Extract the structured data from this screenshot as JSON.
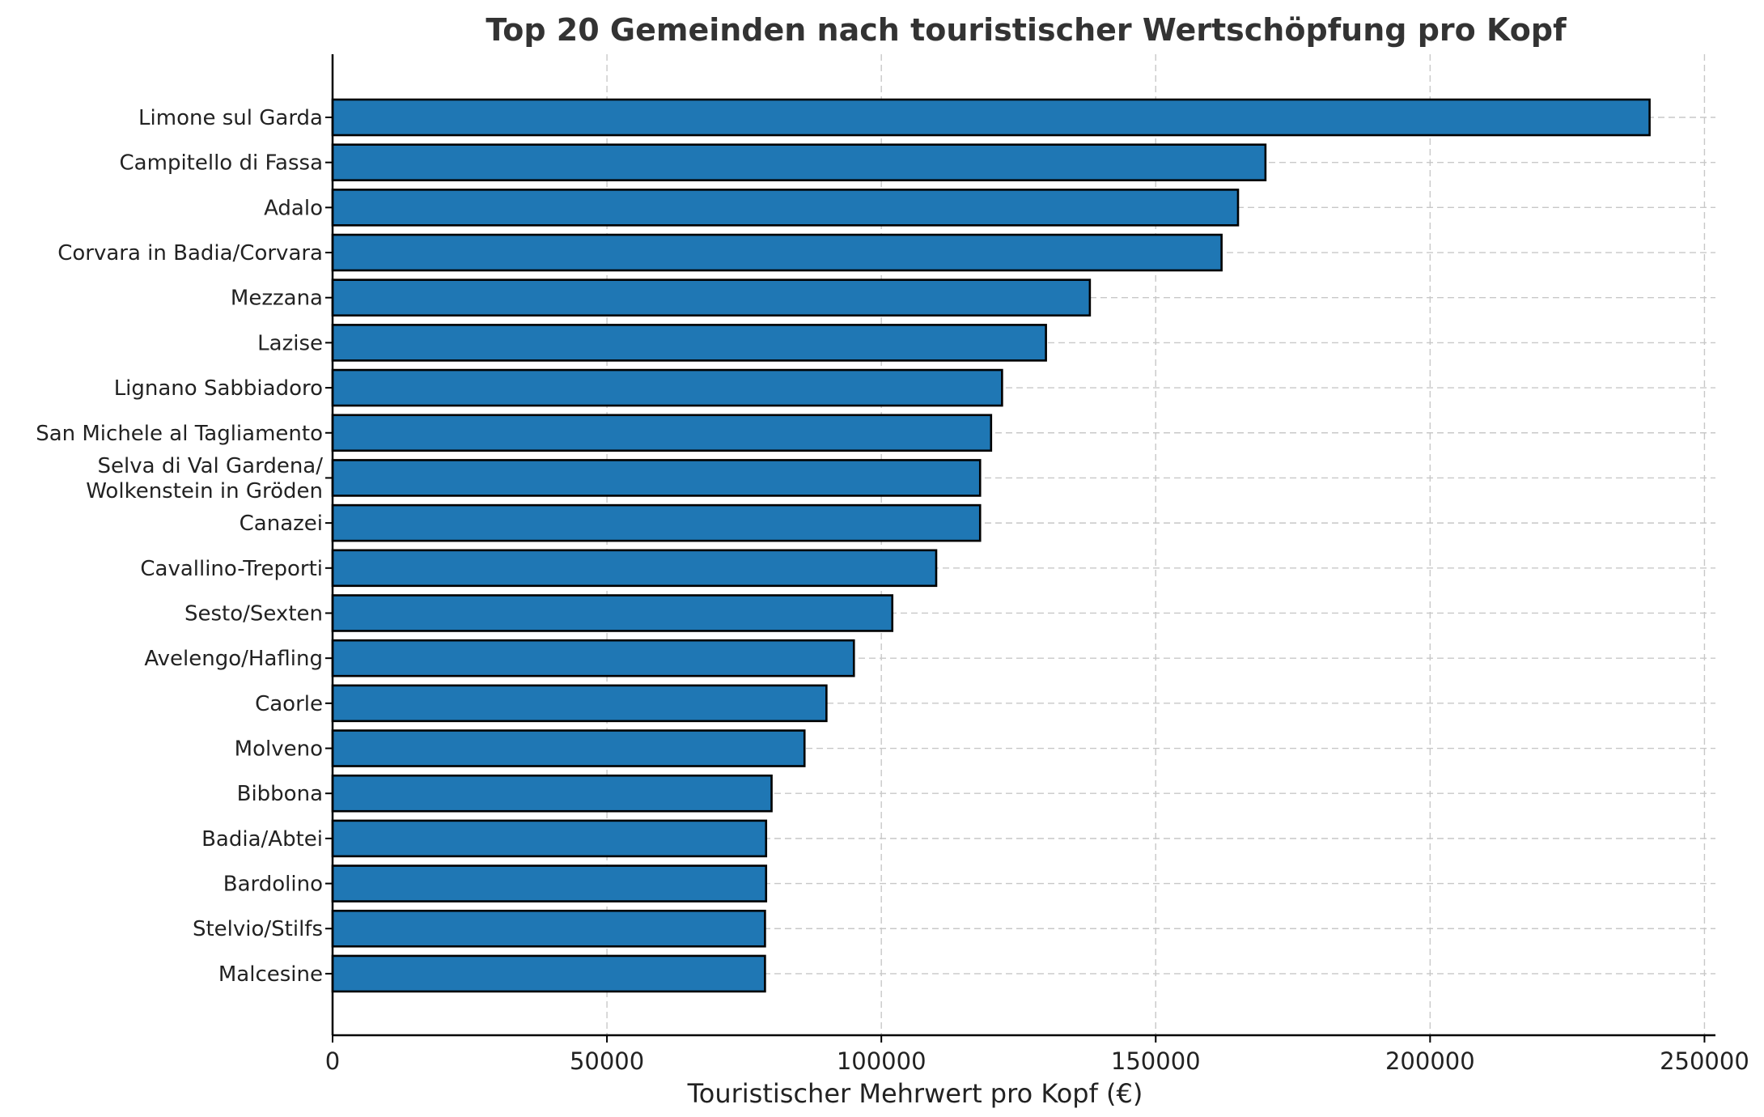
{
  "chart_data": {
    "type": "bar",
    "orientation": "horizontal",
    "title": "Top 20 Gemeinden nach touristischer Wertschöpfung pro Kopf",
    "xlabel": "Touristischer Mehrwert pro Kopf (€)",
    "ylabel": "",
    "xlim": [
      0,
      252000
    ],
    "xticks": [
      0,
      50000,
      100000,
      150000,
      200000,
      250000
    ],
    "xtick_labels": [
      "0",
      "50000",
      "100000",
      "150000",
      "200000",
      "250000"
    ],
    "grid": true,
    "bar_color": "#1f77b4",
    "edge_color": "#000000",
    "categories": [
      "Limone sul Garda",
      "Campitello di Fassa",
      "Adalo",
      "Corvara in Badia/Corvara",
      "Mezzana",
      "Lazise",
      "Lignano Sabbiadoro",
      "San Michele al Tagliamento",
      "Selva di Val Gardena/\nWolkenstein in Gröden",
      "Canazei",
      "Cavallino-Treporti",
      "Sesto/Sexten",
      "Avelengo/Hafling",
      "Caorle",
      "Molveno",
      "Bibbona",
      "Badia/Abtei",
      "Bardolino",
      "Stelvio/Stilfs",
      "Malcesine"
    ],
    "values": [
      240000,
      170000,
      165000,
      162000,
      138000,
      130000,
      122000,
      120000,
      118000,
      118000,
      110000,
      102000,
      95000,
      90000,
      86000,
      80000,
      79000,
      79000,
      78800,
      78800
    ]
  }
}
